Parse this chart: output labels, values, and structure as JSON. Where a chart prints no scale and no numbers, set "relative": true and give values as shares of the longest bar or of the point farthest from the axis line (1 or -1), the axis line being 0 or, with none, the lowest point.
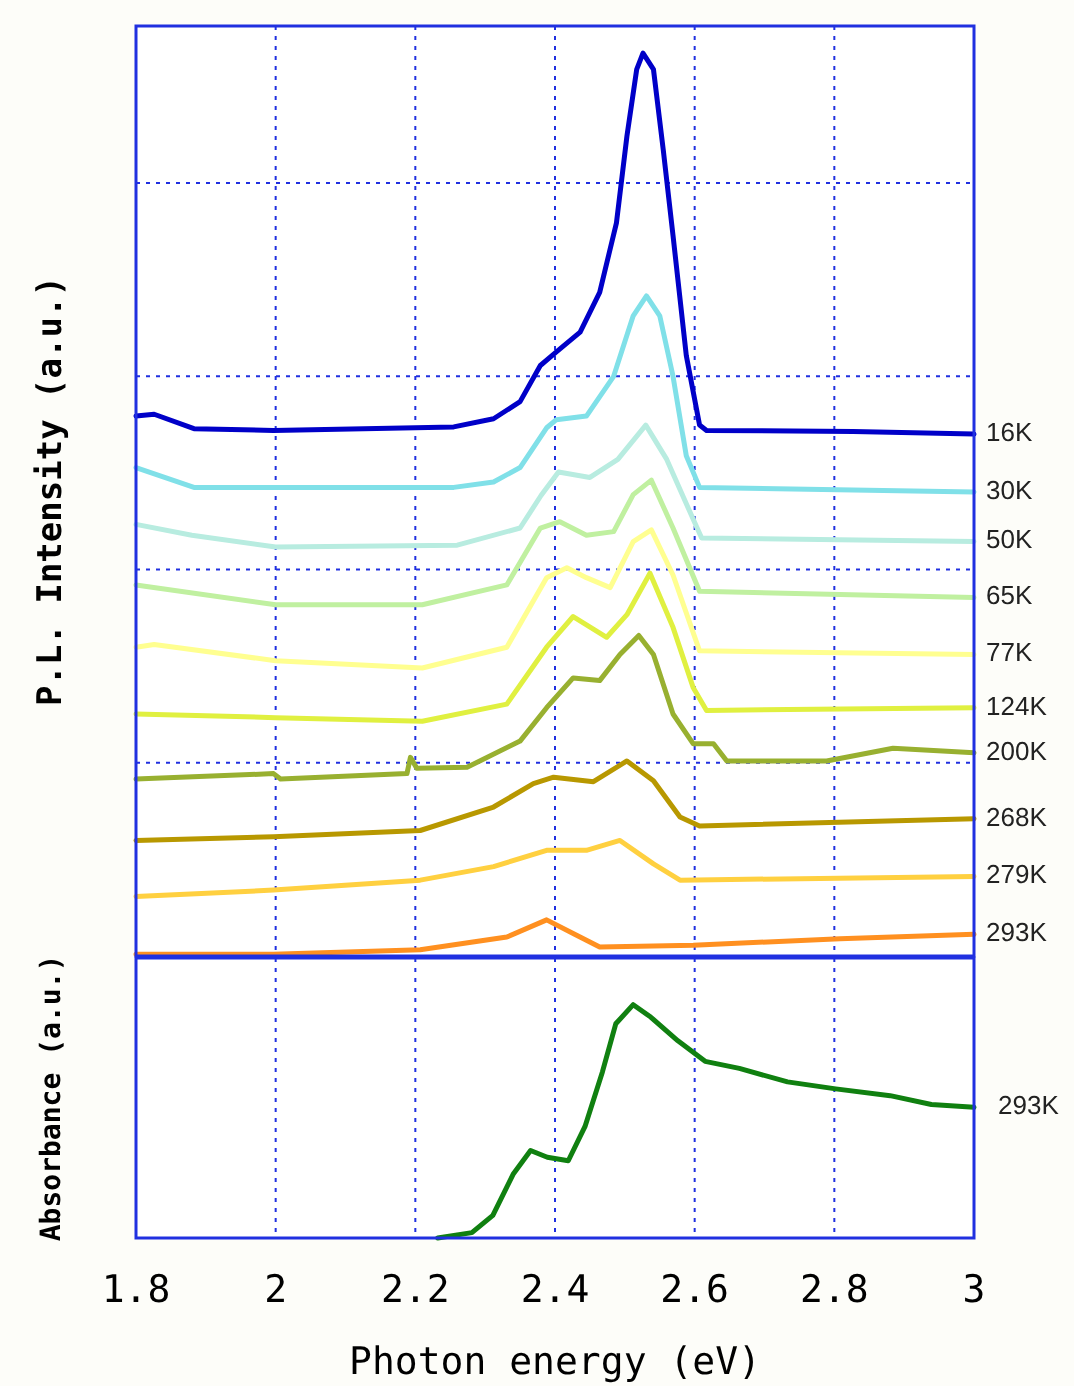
{
  "chart_data": [
    {
      "type": "line",
      "ylabel": "P.L. Intensity (a.u.)",
      "relative": true,
      "xlim": [
        1.8,
        3
      ],
      "xticks": [
        1.8,
        2,
        2.2,
        2.4,
        2.6,
        2.8,
        3
      ],
      "ylim": [
        0,
        1.03
      ],
      "ref_lines": [
        {
          "axis": "y",
          "value": 0.214,
          "label": null,
          "color": "#2030e0",
          "line_style": "dotted"
        },
        {
          "axis": "y",
          "value": 0.428,
          "label": null,
          "color": "#2030e0",
          "line_style": "dotted"
        },
        {
          "axis": "y",
          "value": 0.642,
          "label": null,
          "color": "#2030e0",
          "line_style": "dotted"
        },
        {
          "axis": "y",
          "value": 0.856,
          "label": null,
          "color": "#2030e0",
          "line_style": "dotted"
        }
      ],
      "grid": "x",
      "tick_labels": false,
      "legend": false,
      "marker": "none",
      "line_style": "solid",
      "series": [
        {
          "name": "16K",
          "color": "#0000c8",
          "x": [
            1.8,
            1.826,
            1.883,
            1.997,
            2.255,
            2.312,
            2.35,
            2.379,
            2.402,
            2.436,
            2.464,
            2.488,
            2.503,
            2.517,
            2.526,
            2.541,
            2.555,
            2.569,
            2.588,
            2.607,
            2.617,
            2.827,
            3.0
          ],
          "values": [
            0.598,
            0.6,
            0.584,
            0.582,
            0.586,
            0.595,
            0.614,
            0.654,
            0.669,
            0.691,
            0.735,
            0.812,
            0.908,
            0.982,
            1.0,
            0.982,
            0.893,
            0.798,
            0.665,
            0.588,
            0.582,
            0.581,
            0.578
          ]
        },
        {
          "name": "30K",
          "color": "#80e0e8",
          "x": [
            1.8,
            1.883,
            2.255,
            2.312,
            2.35,
            2.388,
            2.402,
            2.445,
            2.484,
            2.512,
            2.531,
            2.55,
            2.569,
            2.588,
            2.607,
            3.0
          ],
          "values": [
            0.541,
            0.519,
            0.519,
            0.525,
            0.541,
            0.585,
            0.594,
            0.598,
            0.642,
            0.709,
            0.731,
            0.709,
            0.642,
            0.554,
            0.519,
            0.514
          ]
        },
        {
          "name": "50K",
          "color": "#b8ece0",
          "x": [
            1.8,
            1.88,
            2.0,
            2.26,
            2.35,
            2.38,
            2.405,
            2.45,
            2.49,
            2.53,
            2.56,
            2.6,
            2.61,
            3.0
          ],
          "values": [
            0.478,
            0.466,
            0.453,
            0.455,
            0.474,
            0.51,
            0.536,
            0.53,
            0.55,
            0.588,
            0.55,
            0.48,
            0.463,
            0.459
          ]
        },
        {
          "name": "65K",
          "color": "#c0f0a0",
          "x": [
            1.8,
            2.0,
            2.21,
            2.331,
            2.379,
            2.407,
            2.445,
            2.484,
            2.512,
            2.538,
            2.569,
            2.607,
            3.0
          ],
          "values": [
            0.411,
            0.389,
            0.389,
            0.411,
            0.474,
            0.481,
            0.466,
            0.47,
            0.511,
            0.527,
            0.474,
            0.404,
            0.397
          ]
        },
        {
          "name": "77K",
          "color": "#ffff90",
          "x": [
            1.8,
            1.826,
            2.0,
            2.21,
            2.331,
            2.388,
            2.417,
            2.445,
            2.479,
            2.512,
            2.538,
            2.569,
            2.607,
            3.0
          ],
          "values": [
            0.342,
            0.345,
            0.327,
            0.319,
            0.342,
            0.419,
            0.43,
            0.419,
            0.408,
            0.459,
            0.472,
            0.422,
            0.338,
            0.334
          ]
        },
        {
          "name": "124K",
          "color": "#e0f040",
          "x": [
            1.8,
            2.0,
            2.21,
            2.331,
            2.388,
            2.426,
            2.474,
            2.503,
            2.536,
            2.569,
            2.598,
            2.617,
            3.0
          ],
          "values": [
            0.268,
            0.264,
            0.26,
            0.279,
            0.342,
            0.376,
            0.353,
            0.378,
            0.424,
            0.364,
            0.297,
            0.272,
            0.275
          ]
        },
        {
          "name": "200K",
          "color": "#98b030",
          "x": [
            1.8,
            1.997,
            2.007,
            2.188,
            2.193,
            2.202,
            2.274,
            2.35,
            2.388,
            2.426,
            2.464,
            2.493,
            2.52,
            2.541,
            2.569,
            2.598,
            2.627,
            2.646,
            2.789,
            2.884,
            3.0
          ],
          "values": [
            0.196,
            0.202,
            0.196,
            0.202,
            0.22,
            0.208,
            0.209,
            0.238,
            0.275,
            0.308,
            0.305,
            0.334,
            0.355,
            0.334,
            0.268,
            0.235,
            0.235,
            0.216,
            0.216,
            0.23,
            0.225
          ]
        },
        {
          "name": "268K",
          "color": "#b89800",
          "x": [
            1.8,
            1.997,
            2.207,
            2.312,
            2.369,
            2.398,
            2.455,
            2.503,
            2.541,
            2.579,
            2.607,
            3.0
          ],
          "values": [
            0.128,
            0.132,
            0.139,
            0.165,
            0.191,
            0.198,
            0.193,
            0.216,
            0.194,
            0.154,
            0.144,
            0.152
          ]
        },
        {
          "name": "279K",
          "color": "#ffd040",
          "x": [
            1.8,
            1.997,
            2.207,
            2.312,
            2.388,
            2.445,
            2.493,
            2.541,
            2.579,
            3.0
          ],
          "values": [
            0.066,
            0.073,
            0.084,
            0.099,
            0.117,
            0.117,
            0.128,
            0.102,
            0.084,
            0.088
          ]
        },
        {
          "name": "293K",
          "color": "#ff9020",
          "x": [
            1.8,
            1.997,
            2.207,
            2.331,
            2.388,
            2.426,
            2.464,
            2.598,
            2.808,
            3.0
          ],
          "values": [
            0.002,
            0.002,
            0.007,
            0.021,
            0.04,
            0.025,
            0.01,
            0.012,
            0.019,
            0.024
          ]
        }
      ]
    },
    {
      "type": "line",
      "xlabel": "Photon energy (eV)",
      "ylabel": "Absorbance (a.u.)",
      "relative": true,
      "xlim": [
        1.8,
        3
      ],
      "xticks": [
        1.8,
        2,
        2.2,
        2.4,
        2.6,
        2.8,
        3
      ],
      "ylim": [
        0,
        1.2
      ],
      "grid": "x",
      "tick_labels": "x",
      "legend": false,
      "marker": "none",
      "line_style": "solid",
      "series": [
        {
          "name": "293K",
          "color": "#108010",
          "x": [
            2.232,
            2.281,
            2.311,
            2.34,
            2.365,
            2.389,
            2.419,
            2.443,
            2.468,
            2.487,
            2.512,
            2.537,
            2.576,
            2.615,
            2.664,
            2.733,
            2.802,
            2.88,
            2.939,
            3.0
          ],
          "values": [
            0,
            0.023,
            0.097,
            0.273,
            0.375,
            0.346,
            0.331,
            0.478,
            0.713,
            0.918,
            1.0,
            0.947,
            0.845,
            0.757,
            0.727,
            0.669,
            0.639,
            0.61,
            0.572,
            0.56
          ]
        }
      ]
    }
  ]
}
